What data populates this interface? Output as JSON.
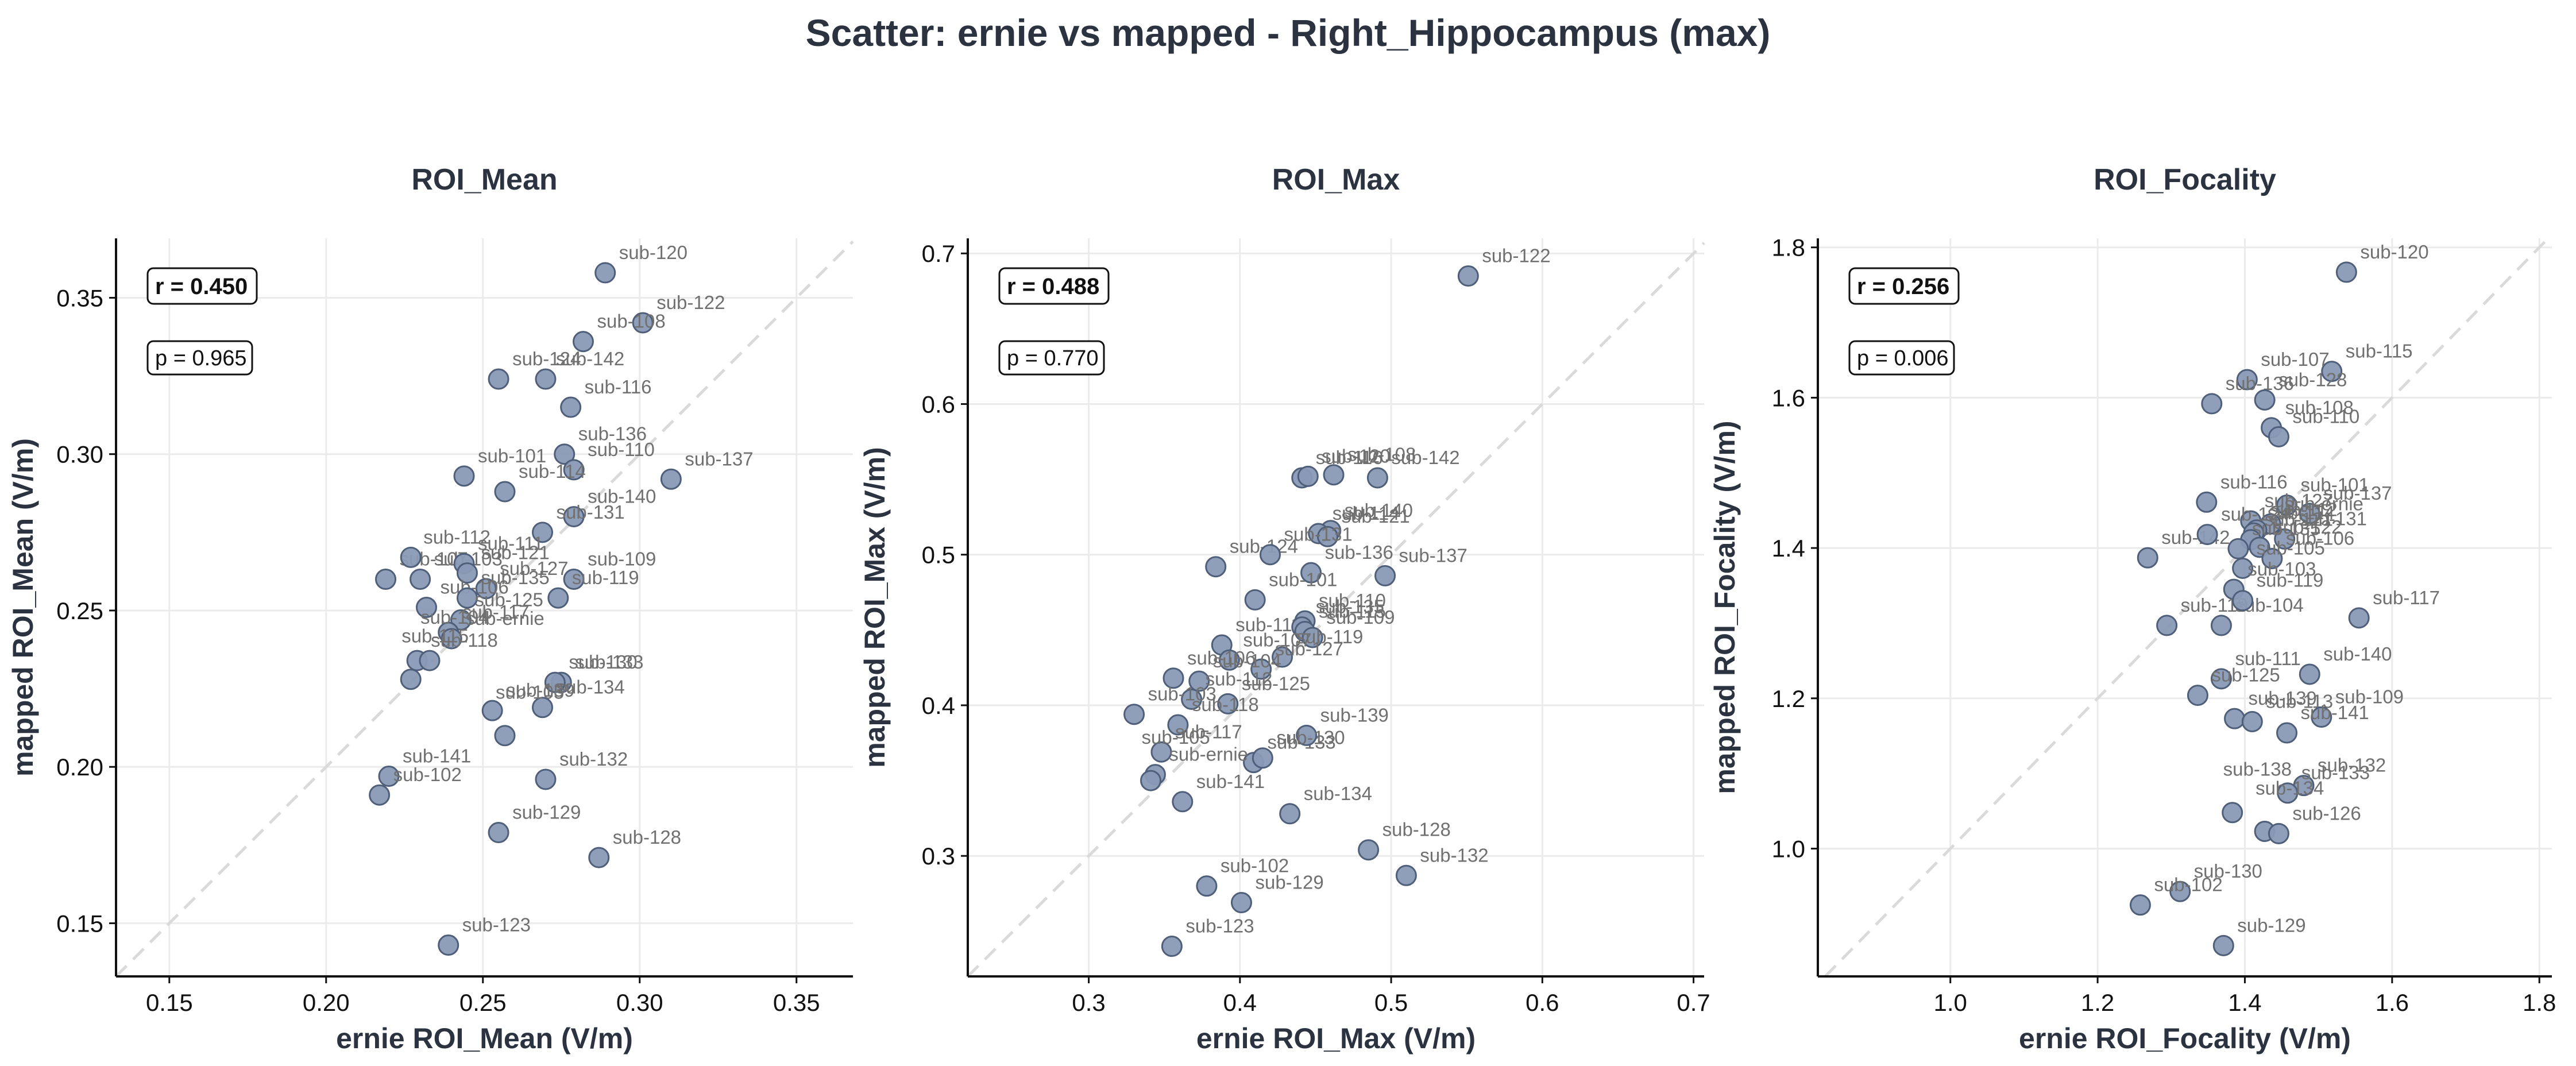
{
  "suptitle": "Scatter: ernie vs mapped - Right_Hippocampus (max)",
  "colors": {
    "point_fill": "#8a9ab5",
    "point_stroke": "#4f5f7a",
    "grid": "#ebebeb",
    "identity_line": "#dadada",
    "text": "#2c3340"
  },
  "chart_data": [
    {
      "type": "scatter",
      "title": "ROI_Mean",
      "xlabel": "ernie ROI_Mean (V/m)",
      "ylabel": "mapped ROI_Mean (V/m)",
      "xlim": [
        0.133,
        0.368
      ],
      "ylim": [
        0.133,
        0.369
      ],
      "xticks": [
        0.15,
        0.2,
        0.25,
        0.3,
        0.35
      ],
      "xtick_labels": [
        "0.15",
        "0.20",
        "0.25",
        "0.30",
        "0.35"
      ],
      "yticks": [
        0.15,
        0.2,
        0.25,
        0.3,
        0.35
      ],
      "ytick_labels": [
        "0.15",
        "0.20",
        "0.25",
        "0.30",
        "0.35"
      ],
      "grid": true,
      "identity_line": true,
      "r_text": "r = 0.450",
      "p_text": "p = 0.965",
      "points": [
        {
          "label": "sub-120",
          "x": 0.289,
          "y": 0.358
        },
        {
          "label": "sub-122",
          "x": 0.301,
          "y": 0.342
        },
        {
          "label": "sub-108",
          "x": 0.282,
          "y": 0.336
        },
        {
          "label": "sub-124",
          "x": 0.255,
          "y": 0.324
        },
        {
          "label": "sub-142",
          "x": 0.27,
          "y": 0.324
        },
        {
          "label": "sub-116",
          "x": 0.278,
          "y": 0.315
        },
        {
          "label": "sub-136",
          "x": 0.276,
          "y": 0.3
        },
        {
          "label": "sub-110",
          "x": 0.279,
          "y": 0.295
        },
        {
          "label": "sub-137",
          "x": 0.31,
          "y": 0.292
        },
        {
          "label": "sub-101",
          "x": 0.244,
          "y": 0.293
        },
        {
          "label": "sub-114",
          "x": 0.257,
          "y": 0.288
        },
        {
          "label": "sub-140",
          "x": 0.279,
          "y": 0.28
        },
        {
          "label": "sub-131",
          "x": 0.269,
          "y": 0.275
        },
        {
          "label": "sub-103",
          "x": 0.23,
          "y": 0.26
        },
        {
          "label": "sub-107",
          "x": 0.219,
          "y": 0.26
        },
        {
          "label": "sub-112",
          "x": 0.227,
          "y": 0.267
        },
        {
          "label": "sub-111",
          "x": 0.244,
          "y": 0.265
        },
        {
          "label": "sub-121",
          "x": 0.245,
          "y": 0.262
        },
        {
          "label": "sub-127",
          "x": 0.251,
          "y": 0.257
        },
        {
          "label": "sub-106",
          "x": 0.232,
          "y": 0.251
        },
        {
          "label": "sub-109",
          "x": 0.279,
          "y": 0.26
        },
        {
          "label": "sub-119",
          "x": 0.274,
          "y": 0.254
        },
        {
          "label": "sub-135",
          "x": 0.245,
          "y": 0.254
        },
        {
          "label": "sub-125",
          "x": 0.243,
          "y": 0.247
        },
        {
          "label": "sub-117",
          "x": 0.239,
          "y": 0.243
        },
        {
          "label": "sub-ernie",
          "x": 0.24,
          "y": 0.241
        },
        {
          "label": "sub-118",
          "x": 0.229,
          "y": 0.234
        },
        {
          "label": "sub-104",
          "x": 0.233,
          "y": 0.234
        },
        {
          "label": "sub-115",
          "x": 0.227,
          "y": 0.228
        },
        {
          "label": "sub-133",
          "x": 0.275,
          "y": 0.227
        },
        {
          "label": "sub-130",
          "x": 0.273,
          "y": 0.227
        },
        {
          "label": "sub-139",
          "x": 0.253,
          "y": 0.218
        },
        {
          "label": "sub-134",
          "x": 0.269,
          "y": 0.219
        },
        {
          "label": "sub-105",
          "x": 0.257,
          "y": 0.21
        },
        {
          "label": "sub-141",
          "x": 0.22,
          "y": 0.197
        },
        {
          "label": "sub-102",
          "x": 0.217,
          "y": 0.191
        },
        {
          "label": "sub-132",
          "x": 0.27,
          "y": 0.196
        },
        {
          "label": "sub-129",
          "x": 0.255,
          "y": 0.179
        },
        {
          "label": "sub-128",
          "x": 0.287,
          "y": 0.171
        },
        {
          "label": "sub-123",
          "x": 0.239,
          "y": 0.143
        }
      ],
      "label_dx": [
        0,
        0,
        0,
        0,
        -6,
        0,
        0,
        0,
        0,
        0,
        0,
        0,
        0,
        0,
        0,
        -2,
        0,
        0,
        0,
        0,
        0,
        0,
        0,
        0,
        0,
        0,
        0,
        -40,
        -40,
        0,
        0,
        0,
        0,
        -40,
        0,
        0,
        0,
        0,
        0,
        0
      ],
      "label_dy": [
        0,
        0,
        0,
        0,
        0,
        0,
        0,
        0,
        0,
        0,
        0,
        0,
        0,
        0,
        0,
        0,
        0,
        0,
        0,
        0,
        0,
        0,
        0,
        0,
        0,
        0,
        0,
        -40,
        -40,
        0,
        0,
        0,
        0,
        -40,
        0,
        0,
        0,
        0,
        0,
        0
      ]
    },
    {
      "type": "scatter",
      "title": "ROI_Max",
      "xlabel": "ernie ROI_Max (V/m)",
      "ylabel": "mapped ROI_Max (V/m)",
      "xlim": [
        0.22,
        0.707
      ],
      "ylim": [
        0.22,
        0.71
      ],
      "xticks": [
        0.3,
        0.4,
        0.5,
        0.6,
        0.7
      ],
      "xtick_labels": [
        "0.3",
        "0.4",
        "0.5",
        "0.6",
        "0.7"
      ],
      "yticks": [
        0.3,
        0.4,
        0.5,
        0.6,
        0.7
      ],
      "ytick_labels": [
        "0.3",
        "0.4",
        "0.5",
        "0.6",
        "0.7"
      ],
      "grid": true,
      "identity_line": true,
      "r_text": "r = 0.488",
      "p_text": "p = 0.770",
      "points": [
        {
          "label": "sub-122",
          "x": 0.551,
          "y": 0.685
        },
        {
          "label": "sub-116",
          "x": 0.441,
          "y": 0.551
        },
        {
          "label": "sub-108",
          "x": 0.462,
          "y": 0.553
        },
        {
          "label": "sub-120",
          "x": 0.445,
          "y": 0.552
        },
        {
          "label": "sub-142",
          "x": 0.491,
          "y": 0.551
        },
        {
          "label": "sub-140",
          "x": 0.46,
          "y": 0.516
        },
        {
          "label": "sub-114",
          "x": 0.452,
          "y": 0.514
        },
        {
          "label": "sub-121",
          "x": 0.458,
          "y": 0.512
        },
        {
          "label": "sub-124",
          "x": 0.384,
          "y": 0.492
        },
        {
          "label": "sub-131",
          "x": 0.42,
          "y": 0.5
        },
        {
          "label": "sub-136",
          "x": 0.447,
          "y": 0.488
        },
        {
          "label": "sub-137",
          "x": 0.496,
          "y": 0.486
        },
        {
          "label": "sub-101",
          "x": 0.41,
          "y": 0.47
        },
        {
          "label": "sub-110",
          "x": 0.443,
          "y": 0.456
        },
        {
          "label": "sub-111",
          "x": 0.388,
          "y": 0.44
        },
        {
          "label": "sub-135",
          "x": 0.441,
          "y": 0.452
        },
        {
          "label": "sub-115",
          "x": 0.443,
          "y": 0.449
        },
        {
          "label": "sub-109",
          "x": 0.448,
          "y": 0.445
        },
        {
          "label": "sub-107",
          "x": 0.393,
          "y": 0.43
        },
        {
          "label": "sub-119",
          "x": 0.428,
          "y": 0.432
        },
        {
          "label": "sub-106",
          "x": 0.356,
          "y": 0.418
        },
        {
          "label": "sub-127",
          "x": 0.414,
          "y": 0.424
        },
        {
          "label": "sub-104",
          "x": 0.373,
          "y": 0.416
        },
        {
          "label": "sub-112",
          "x": 0.368,
          "y": 0.404
        },
        {
          "label": "sub-103",
          "x": 0.33,
          "y": 0.394
        },
        {
          "label": "sub-125",
          "x": 0.392,
          "y": 0.401
        },
        {
          "label": "sub-118",
          "x": 0.359,
          "y": 0.387
        },
        {
          "label": "sub-117",
          "x": 0.348,
          "y": 0.369
        },
        {
          "label": "sub-133",
          "x": 0.409,
          "y": 0.362
        },
        {
          "label": "sub-139",
          "x": 0.444,
          "y": 0.38
        },
        {
          "label": "sub-130",
          "x": 0.415,
          "y": 0.365
        },
        {
          "label": "sub-ernie",
          "x": 0.344,
          "y": 0.354
        },
        {
          "label": "sub-141",
          "x": 0.362,
          "y": 0.336
        },
        {
          "label": "sub-134",
          "x": 0.433,
          "y": 0.328
        },
        {
          "label": "sub-105",
          "x": 0.341,
          "y": 0.35
        },
        {
          "label": "sub-128",
          "x": 0.485,
          "y": 0.304
        },
        {
          "label": "sub-132",
          "x": 0.51,
          "y": 0.287
        },
        {
          "label": "sub-102",
          "x": 0.378,
          "y": 0.28
        },
        {
          "label": "sub-129",
          "x": 0.401,
          "y": 0.269
        },
        {
          "label": "sub-123",
          "x": 0.355,
          "y": 0.24
        }
      ],
      "label_dx": [
        0,
        0,
        0,
        0,
        0,
        0,
        0,
        0,
        0,
        0,
        0,
        0,
        0,
        0,
        0,
        0,
        0,
        0,
        0,
        0,
        0,
        0,
        0,
        0,
        0,
        0,
        0,
        0,
        0,
        0,
        0,
        0,
        0,
        0,
        -40,
        0,
        0,
        0,
        0,
        0
      ],
      "label_dy": [
        0,
        0,
        0,
        0,
        0,
        0,
        0,
        0,
        0,
        0,
        0,
        0,
        0,
        0,
        0,
        0,
        0,
        0,
        0,
        0,
        0,
        0,
        0,
        0,
        0,
        0,
        0,
        0,
        0,
        0,
        0,
        0,
        0,
        0,
        -40,
        0,
        0,
        0,
        0,
        0
      ]
    },
    {
      "type": "scatter",
      "title": "ROI_Focality",
      "xlabel": "ernie ROI_Focality (V/m)",
      "ylabel": "mapped ROI_Focality (V/m)",
      "xlim": [
        0.82,
        1.817
      ],
      "ylim": [
        0.83,
        1.812
      ],
      "xticks": [
        1.0,
        1.2,
        1.4,
        1.6,
        1.8
      ],
      "xtick_labels": [
        "1.0",
        "1.2",
        "1.4",
        "1.6",
        "1.8"
      ],
      "yticks": [
        1.0,
        1.2,
        1.4,
        1.6,
        1.8
      ],
      "ytick_labels": [
        "1.0",
        "1.2",
        "1.4",
        "1.6",
        "1.8"
      ],
      "grid": true,
      "identity_line": true,
      "r_text": "r = 0.256",
      "p_text": "p = 0.006",
      "points": [
        {
          "label": "sub-120",
          "x": 1.538,
          "y": 1.767
        },
        {
          "label": "sub-115",
          "x": 1.518,
          "y": 1.635
        },
        {
          "label": "sub-107",
          "x": 1.403,
          "y": 1.624
        },
        {
          "label": "sub-136",
          "x": 1.355,
          "y": 1.592
        },
        {
          "label": "sub-128",
          "x": 1.427,
          "y": 1.597
        },
        {
          "label": "sub-108",
          "x": 1.436,
          "y": 1.56
        },
        {
          "label": "sub-110",
          "x": 1.446,
          "y": 1.548
        },
        {
          "label": "sub-116",
          "x": 1.348,
          "y": 1.461
        },
        {
          "label": "sub-137",
          "x": 1.488,
          "y": 1.446
        },
        {
          "label": "sub-101",
          "x": 1.457,
          "y": 1.457
        },
        {
          "label": "sub-127",
          "x": 1.408,
          "y": 1.436
        },
        {
          "label": "sub-ernie",
          "x": 1.435,
          "y": 1.432
        },
        {
          "label": "sub-112",
          "x": 1.416,
          "y": 1.424
        },
        {
          "label": "sub-142",
          "x": 1.268,
          "y": 1.387
        },
        {
          "label": "sub-124",
          "x": 1.349,
          "y": 1.418
        },
        {
          "label": "sub-114",
          "x": 1.412,
          "y": 1.42
        },
        {
          "label": "sub-131",
          "x": 1.454,
          "y": 1.412
        },
        {
          "label": "sub-121",
          "x": 1.408,
          "y": 1.411
        },
        {
          "label": "sub-122",
          "x": 1.42,
          "y": 1.401
        },
        {
          "label": "sub-135",
          "x": 1.391,
          "y": 1.399
        },
        {
          "label": "sub-106",
          "x": 1.437,
          "y": 1.386
        },
        {
          "label": "sub-105",
          "x": 1.397,
          "y": 1.373
        },
        {
          "label": "sub-103",
          "x": 1.385,
          "y": 1.345
        },
        {
          "label": "sub-118",
          "x": 1.294,
          "y": 1.297
        },
        {
          "label": "sub-104",
          "x": 1.368,
          "y": 1.297
        },
        {
          "label": "sub-119",
          "x": 1.397,
          "y": 1.33
        },
        {
          "label": "sub-117",
          "x": 1.555,
          "y": 1.307
        },
        {
          "label": "sub-140",
          "x": 1.488,
          "y": 1.232
        },
        {
          "label": "sub-111",
          "x": 1.368,
          "y": 1.226
        },
        {
          "label": "sub-125",
          "x": 1.336,
          "y": 1.204
        },
        {
          "label": "sub-139",
          "x": 1.386,
          "y": 1.173
        },
        {
          "label": "sub-113",
          "x": 1.41,
          "y": 1.169
        },
        {
          "label": "sub-109",
          "x": 1.504,
          "y": 1.175
        },
        {
          "label": "sub-141",
          "x": 1.457,
          "y": 1.154
        },
        {
          "label": "sub-132",
          "x": 1.48,
          "y": 1.084
        },
        {
          "label": "sub-133",
          "x": 1.458,
          "y": 1.074
        },
        {
          "label": "sub-134",
          "x": 1.427,
          "y": 1.023
        },
        {
          "label": "sub-126",
          "x": 1.446,
          "y": 1.02
        },
        {
          "label": "sub-138",
          "x": 1.383,
          "y": 1.048
        },
        {
          "label": "sub-130",
          "x": 1.312,
          "y": 0.943
        },
        {
          "label": "sub-102",
          "x": 1.258,
          "y": 0.925
        },
        {
          "label": "sub-129",
          "x": 1.371,
          "y": 0.871
        }
      ],
      "label_dx": [
        0,
        0,
        0,
        0,
        0,
        0,
        0,
        0,
        0,
        0,
        0,
        0,
        0,
        0,
        0,
        0,
        0,
        0,
        0,
        0,
        0,
        0,
        0,
        0,
        0,
        0,
        0,
        0,
        0,
        0,
        0,
        0,
        0,
        0,
        0,
        0,
        -40,
        0,
        -40,
        0,
        0,
        0
      ],
      "label_dy": [
        0,
        0,
        0,
        0,
        0,
        0,
        0,
        0,
        0,
        0,
        0,
        0,
        0,
        0,
        0,
        0,
        0,
        0,
        0,
        0,
        0,
        0,
        0,
        0,
        0,
        0,
        0,
        0,
        0,
        0,
        0,
        0,
        0,
        0,
        0,
        0,
        -40,
        0,
        -40,
        0,
        0,
        0
      ]
    }
  ]
}
